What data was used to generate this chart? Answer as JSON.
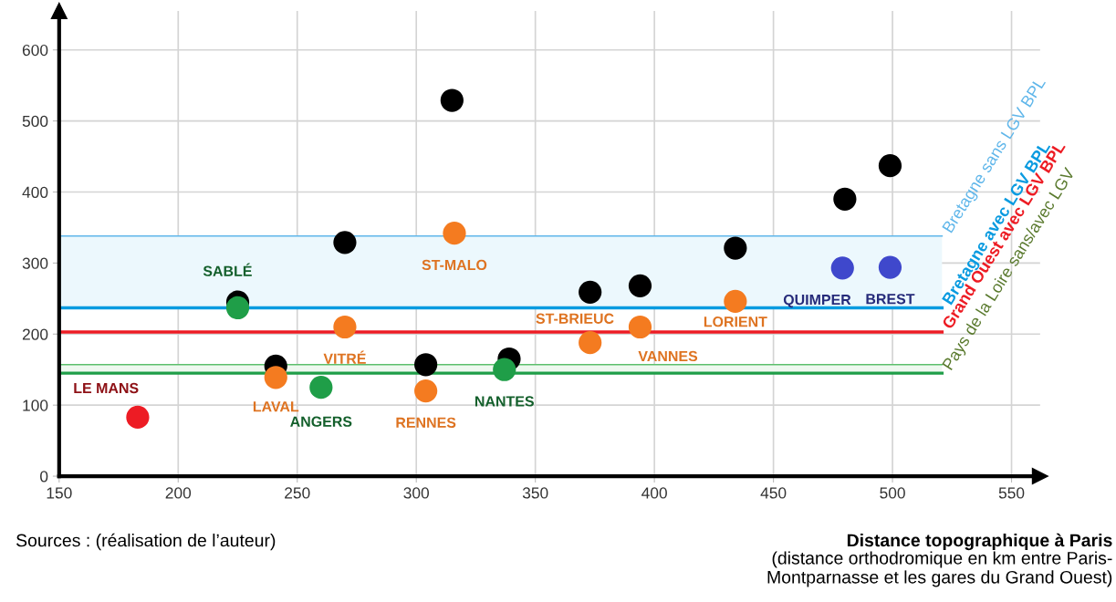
{
  "chart_data": {
    "type": "scatter",
    "xlabel": "Distance topographique à Paris",
    "xlim": [
      150,
      562
    ],
    "ylim": [
      0,
      655
    ],
    "xticks": [
      150,
      200,
      250,
      300,
      350,
      400,
      450,
      500,
      550
    ],
    "yticks": [
      0,
      100,
      200,
      300,
      400,
      500,
      600
    ],
    "grid": true,
    "marker": "circle",
    "series": [
      {
        "color": "#000000",
        "x": [
          225,
          241,
          270,
          315,
          304,
          339,
          373,
          394,
          434,
          480,
          499
        ],
        "values": [
          245,
          155,
          329,
          529,
          157,
          165,
          259,
          268,
          321,
          390,
          437
        ]
      },
      {
        "color": "#f47b20",
        "x": [
          241,
          270,
          316,
          304,
          373,
          394,
          434
        ],
        "values": [
          139,
          210,
          342,
          120,
          188,
          210,
          246
        ]
      },
      {
        "color": "#1f9e48",
        "x": [
          225,
          260,
          337
        ],
        "values": [
          237,
          125,
          150
        ]
      },
      {
        "color": "#3f48cc",
        "x": [
          479,
          499
        ],
        "values": [
          293,
          294
        ]
      },
      {
        "color": "#ed1c24",
        "x": [
          183
        ],
        "values": [
          83
        ]
      }
    ],
    "ref_lines": [
      {
        "axis": "y",
        "value": 338,
        "label": "Bretagne sans LGV BPL",
        "color": "#5fb6ea"
      },
      {
        "axis": "y",
        "value": 237,
        "label": "Bretagne avec LGV BPL",
        "color": "#0a9be0"
      },
      {
        "axis": "y",
        "value": 203,
        "label": "Grand Ouest avec LGV BPL",
        "color": "#ed1c24"
      },
      {
        "axis": "y",
        "value": 157,
        "color": "#5cbf6c"
      },
      {
        "axis": "y",
        "value": 145,
        "color": "#1f9e48"
      }
    ],
    "bands": [
      {
        "axis": "y",
        "from": 237,
        "to": 338,
        "color": "#ecf8fd"
      },
      {
        "axis": "y",
        "from": 145,
        "to": 157,
        "label": "Pays de la Loire sans/avec LGV",
        "color": "#eef8ef"
      }
    ],
    "annotations": [
      "Sources : (réalisation de l’auteur)",
      "(distance orthodromique en km entre Paris-\nMontparnasse et les gares du Grand Ouest)",
      {
        "text": "SABLÉ",
        "x": 225,
        "y": 237
      },
      {
        "text": "LE MANS",
        "x": 183,
        "y": 83
      },
      {
        "text": "LAVAL",
        "x": 241,
        "y": 139
      },
      {
        "text": "ANGERS",
        "x": 260,
        "y": 125
      },
      {
        "text": "VITRÉ",
        "x": 270,
        "y": 210
      },
      {
        "text": "RENNES",
        "x": 304,
        "y": 120
      },
      {
        "text": "ST-MALO",
        "x": 316,
        "y": 342
      },
      {
        "text": "NANTES",
        "x": 337,
        "y": 150
      },
      {
        "text": "ST-BRIEUC",
        "x": 373,
        "y": 188
      },
      {
        "text": "VANNES",
        "x": 394,
        "y": 210
      },
      {
        "text": "LORIENT",
        "x": 434,
        "y": 246
      },
      {
        "text": "QUIMPER",
        "x": 479,
        "y": 293
      },
      {
        "text": "BREST",
        "x": 499,
        "y": 294
      }
    ]
  }
}
